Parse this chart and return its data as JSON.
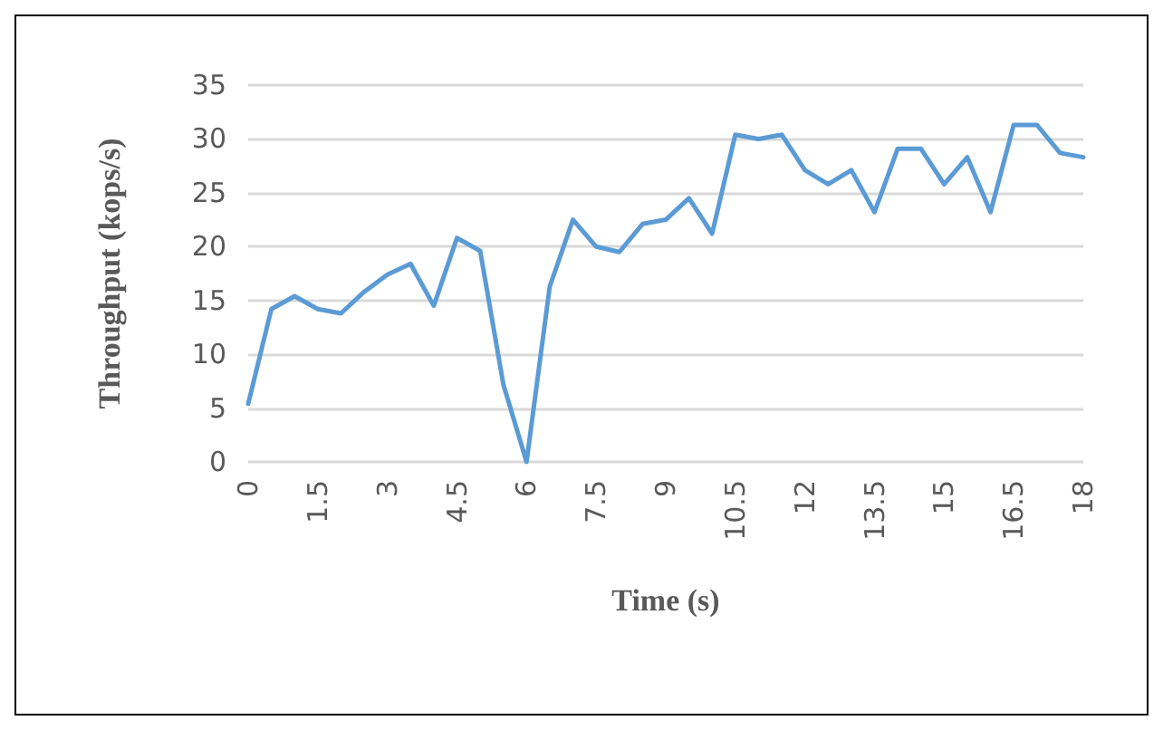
{
  "chart_data": {
    "type": "line",
    "xlabel": "Time (s)",
    "ylabel": "Throughput (kops/s)",
    "x": [
      0,
      0.5,
      1,
      1.5,
      2,
      2.5,
      3,
      3.5,
      4,
      4.5,
      5,
      5.5,
      6,
      6.5,
      7,
      7.5,
      8,
      8.5,
      9,
      9.5,
      10,
      10.5,
      11,
      11.5,
      12,
      12.5,
      13,
      13.5,
      14,
      14.5,
      15,
      15.5,
      16,
      16.5,
      17,
      17.5,
      18
    ],
    "series": [
      {
        "color": "#5b9bd5",
        "values": [
          5.4,
          14.2,
          15.4,
          14.2,
          13.8,
          15.8,
          17.4,
          18.4,
          14.5,
          20.8,
          19.6,
          7.2,
          0,
          16.3,
          22.5,
          20.0,
          19.5,
          22.1,
          22.5,
          24.5,
          21.2,
          30.4,
          30.0,
          30.4,
          27.1,
          25.8,
          27.1,
          23.2,
          29.1,
          29.1,
          25.8,
          28.3,
          23.2,
          31.3,
          31.3,
          28.7,
          28.3
        ]
      }
    ],
    "xlim": [
      0,
      18
    ],
    "xticks": [
      0,
      1.5,
      3,
      4.5,
      6,
      7.5,
      9,
      10.5,
      12,
      13.5,
      15,
      16.5,
      18
    ],
    "ylim": [
      0,
      35
    ],
    "yticks": [
      0,
      5,
      10,
      15,
      20,
      25,
      30,
      35
    ],
    "grid": "y",
    "marker": "none",
    "line_style": "solid"
  }
}
